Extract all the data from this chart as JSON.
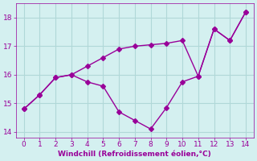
{
  "x": [
    0,
    1,
    2,
    3,
    4,
    5,
    6,
    7,
    8,
    9,
    10,
    11,
    12,
    13,
    14
  ],
  "y_upper": [
    14.8,
    15.3,
    15.9,
    16.0,
    16.3,
    16.6,
    16.9,
    17.0,
    17.05,
    17.1,
    17.2,
    15.95,
    17.6,
    17.2,
    18.2
  ],
  "y_lower": [
    14.8,
    15.3,
    15.9,
    16.0,
    15.75,
    15.6,
    14.7,
    14.4,
    14.1,
    14.85,
    15.75,
    15.95,
    17.6,
    17.2,
    18.2
  ],
  "line_color": "#990099",
  "background_color": "#d4f0f0",
  "grid_color": "#b0d8d8",
  "xlabel": "Windchill (Refroidissement éolien,°C)",
  "ylim": [
    13.8,
    18.5
  ],
  "xlim": [
    -0.5,
    14.5
  ],
  "yticks": [
    14,
    15,
    16,
    17,
    18
  ],
  "xticks": [
    0,
    1,
    2,
    3,
    4,
    5,
    6,
    7,
    8,
    9,
    10,
    11,
    12,
    13,
    14
  ],
  "xlabel_color": "#990099",
  "tick_color": "#990099",
  "markersize": 3,
  "linewidth": 1.0
}
